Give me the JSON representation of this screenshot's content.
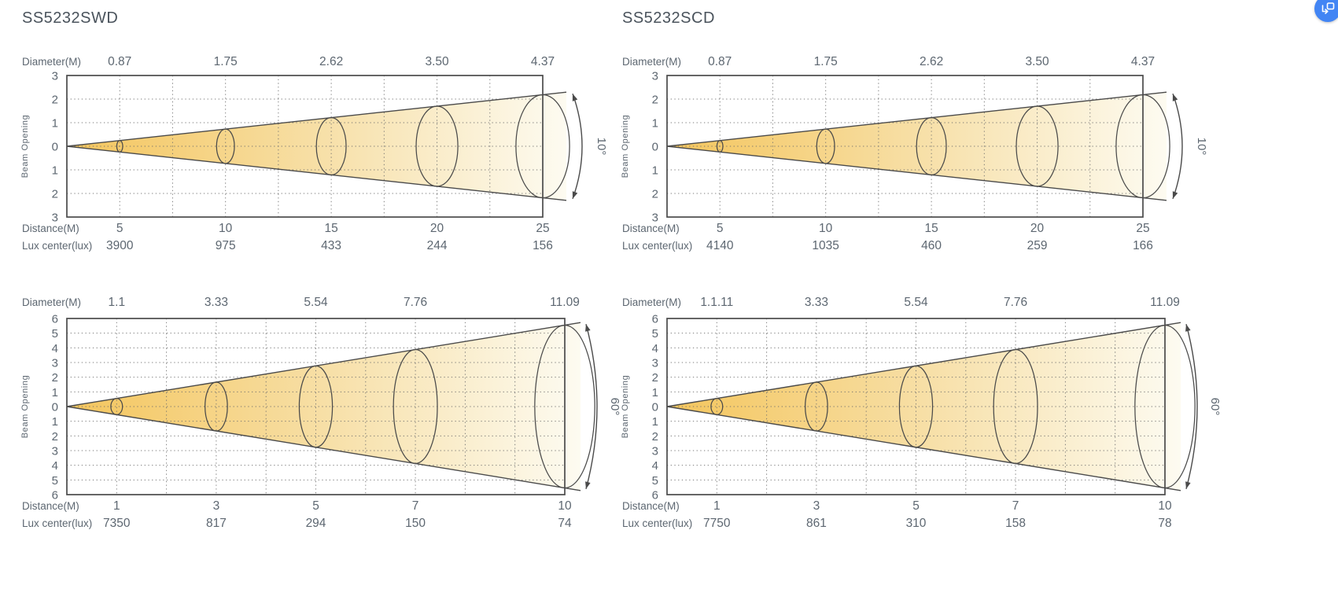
{
  "page": {
    "background": "#ffffff",
    "text_color": "#5d6771",
    "title_color": "#4a535c",
    "stroke_color": "#4a4a4a",
    "grid_color": "#6e6e6e",
    "beam_gold": "#f4c55c",
    "beam_fade_mid": "#f7dfa6",
    "beam_fade_end": "#fdfbf1"
  },
  "floating_icon": {
    "name": "translate-page-icon",
    "bg_color": "#4285F4",
    "glyph_color": "#ffffff"
  },
  "chart_data": [
    {
      "type": "area",
      "id": "ss5232swd-10deg",
      "title": "SS5232SWD",
      "beam_angle": "10°",
      "beam_angle_deg": 10,
      "ylabel": "Beam Opening",
      "ylim": [
        -3,
        3
      ],
      "y_ticks": [
        3,
        2,
        1,
        0,
        1,
        2,
        3
      ],
      "diameter_label": "Diameter(M)",
      "distance_label": "Distance(M)",
      "lux_label": "Lux center(lux)",
      "diameter_m": [
        "0.87",
        "1.75",
        "2.62",
        "3.50",
        "4.37"
      ],
      "distance_m": [
        "5",
        "10",
        "15",
        "20",
        "25"
      ],
      "lux_center": [
        "3900",
        "975",
        "433",
        "244",
        "156"
      ],
      "x_values": [
        5,
        10,
        15,
        20,
        25
      ],
      "x_max": 25,
      "x_tick_mode": "even",
      "grid": "dotted",
      "last_diameter_m": 4.37
    },
    {
      "type": "area",
      "id": "ss5232scd-10deg",
      "title": "SS5232SCD",
      "beam_angle": "10°",
      "beam_angle_deg": 10,
      "ylabel": "Beam Opening",
      "ylim": [
        -3,
        3
      ],
      "y_ticks": [
        3,
        2,
        1,
        0,
        1,
        2,
        3
      ],
      "diameter_label": "Diameter(M)",
      "distance_label": "Distance(M)",
      "lux_label": "Lux center(lux)",
      "diameter_m": [
        "0.87",
        "1.75",
        "2.62",
        "3.50",
        "4.37"
      ],
      "distance_m": [
        "5",
        "10",
        "15",
        "20",
        "25"
      ],
      "lux_center": [
        "4140",
        "1035",
        "460",
        "259",
        "166"
      ],
      "x_values": [
        5,
        10,
        15,
        20,
        25
      ],
      "x_max": 25,
      "x_tick_mode": "even",
      "grid": "dotted",
      "last_diameter_m": 4.37
    },
    {
      "type": "area",
      "id": "ss5232swd-60deg",
      "title": "",
      "beam_angle": "60°",
      "beam_angle_deg": 60,
      "ylabel": "Beam Opening",
      "ylim": [
        -6,
        6
      ],
      "y_ticks": [
        6,
        5,
        4,
        3,
        2,
        1,
        0,
        1,
        2,
        3,
        4,
        5,
        6
      ],
      "diameter_label": "Diameter(M)",
      "distance_label": "Distance(M)",
      "lux_label": "Lux center(lux)",
      "diameter_m": [
        "1.1",
        "3.33",
        "5.54",
        "7.76",
        "11.09"
      ],
      "distance_m": [
        "1",
        "3",
        "5",
        "7",
        "10"
      ],
      "lux_center": [
        "7350",
        "817",
        "294",
        "150",
        "74"
      ],
      "x_values": [
        1,
        3,
        5,
        7,
        10
      ],
      "x_max": 10,
      "x_tick_mode": "proportional",
      "grid": "dotted",
      "last_diameter_m": 11.09
    },
    {
      "type": "area",
      "id": "ss5232scd-60deg",
      "title": "",
      "beam_angle": "60°",
      "beam_angle_deg": 60,
      "ylabel": "Beam Opening",
      "ylim": [
        -6,
        6
      ],
      "y_ticks": [
        6,
        5,
        4,
        3,
        2,
        1,
        0,
        1,
        2,
        3,
        4,
        5,
        6
      ],
      "diameter_label": "Diameter(M)",
      "distance_label": "Distance(M)",
      "lux_label": "Lux center(lux)",
      "diameter_m": [
        "1.1.11",
        "3.33",
        "5.54",
        "7.76",
        "11.09"
      ],
      "distance_m": [
        "1",
        "3",
        "5",
        "7",
        "10"
      ],
      "lux_center": [
        "7750",
        "861",
        "310",
        "158",
        "78"
      ],
      "x_values": [
        1,
        3,
        5,
        7,
        10
      ],
      "x_max": 10,
      "x_tick_mode": "proportional",
      "grid": "dotted",
      "last_diameter_m": 11.09
    }
  ]
}
